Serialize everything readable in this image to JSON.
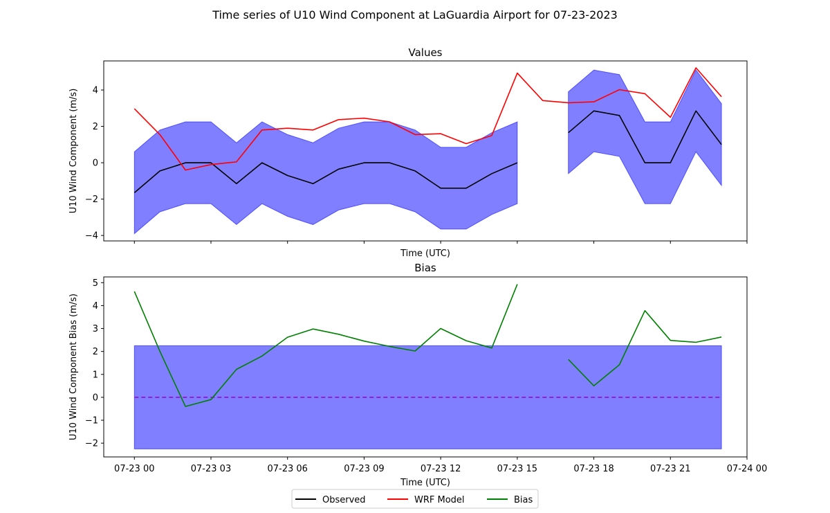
{
  "figure": {
    "title": "Time series of U10 Wind Component at LaGuardia Airport for 07-23-2023"
  },
  "legend": {
    "placement": "bottom-center",
    "entries": [
      {
        "label": "Observed",
        "color": "#000000"
      },
      {
        "label": "WRF Model",
        "color": "#ff0000"
      },
      {
        "label": "Bias",
        "color": "#008000"
      }
    ]
  },
  "colors": {
    "observed": "#000000",
    "model": "#ff0000",
    "bias": "#008000",
    "band": "#0000ff",
    "zero_line": "#9400d3"
  },
  "chart_data": [
    {
      "type": "line",
      "title": "Values",
      "xlabel": "Time (UTC)",
      "ylabel": "U10 Wind Component (m/s)",
      "x": [
        "07-23 00",
        "07-23 01",
        "07-23 02",
        "07-23 03",
        "07-23 04",
        "07-23 05",
        "07-23 06",
        "07-23 07",
        "07-23 08",
        "07-23 09",
        "07-23 10",
        "07-23 11",
        "07-23 12",
        "07-23 13",
        "07-23 14",
        "07-23 15",
        "07-23 16",
        "07-23 17",
        "07-23 18",
        "07-23 19",
        "07-23 20",
        "07-23 21",
        "07-23 22",
        "07-23 23"
      ],
      "x_hours": [
        0,
        1,
        2,
        3,
        4,
        5,
        6,
        7,
        8,
        9,
        10,
        11,
        12,
        13,
        14,
        15,
        16,
        17,
        18,
        19,
        20,
        21,
        22,
        23
      ],
      "xlim_hours": [
        -1.2,
        24.0
      ],
      "ylim": [
        -4.3,
        5.6
      ],
      "yticks": [
        -4,
        -2,
        0,
        2,
        4
      ],
      "xticks_hours": [
        0,
        3,
        6,
        9,
        12,
        15,
        18,
        21,
        24
      ],
      "xtick_labels_shown": false,
      "grid": false,
      "series": [
        {
          "name": "Observed",
          "key": "observed",
          "values": [
            -1.65,
            -0.45,
            0.0,
            0.0,
            -1.15,
            0.0,
            -0.7,
            -1.15,
            -0.35,
            0.0,
            0.0,
            -0.45,
            -1.4,
            -1.4,
            -0.6,
            0.0,
            null,
            1.65,
            2.85,
            2.6,
            0.0,
            0.0,
            2.85,
            1.0
          ]
        },
        {
          "name": "WRF Model",
          "key": "model",
          "values": [
            2.97,
            1.55,
            -0.4,
            -0.1,
            0.05,
            1.8,
            1.9,
            1.8,
            2.37,
            2.45,
            2.25,
            1.55,
            1.6,
            1.05,
            1.5,
            4.93,
            3.42,
            3.3,
            3.35,
            4.02,
            3.8,
            2.5,
            5.22,
            3.63
          ]
        }
      ],
      "band": {
        "key": "band",
        "lower": [
          -3.9,
          -2.7,
          -2.25,
          -2.25,
          -3.4,
          -2.25,
          -2.95,
          -3.4,
          -2.6,
          -2.25,
          -2.25,
          -2.7,
          -3.65,
          -3.65,
          -2.85,
          -2.25,
          null,
          -0.6,
          0.6,
          0.35,
          -2.25,
          -2.25,
          0.6,
          -1.25
        ],
        "upper": [
          0.6,
          1.8,
          2.25,
          2.25,
          1.1,
          2.25,
          1.55,
          1.1,
          1.9,
          2.25,
          2.25,
          1.8,
          0.85,
          0.85,
          1.65,
          2.25,
          null,
          3.9,
          5.1,
          4.85,
          2.25,
          2.25,
          5.1,
          3.25
        ]
      }
    },
    {
      "type": "line",
      "title": "Bias",
      "xlabel": "Time (UTC)",
      "ylabel": "U10 Wind Component Bias (m/s)",
      "x_hours": [
        0,
        1,
        2,
        3,
        4,
        5,
        6,
        7,
        8,
        9,
        10,
        11,
        12,
        13,
        14,
        15,
        16,
        17,
        18,
        19,
        20,
        21,
        22,
        23
      ],
      "xlim_hours": [
        -1.2,
        24.0
      ],
      "ylim": [
        -2.6,
        5.25
      ],
      "yticks": [
        -2,
        -1,
        0,
        1,
        2,
        3,
        4,
        5
      ],
      "xticks_hours": [
        0,
        3,
        6,
        9,
        12,
        15,
        18,
        21,
        24
      ],
      "xtick_labels": [
        "07-23 00",
        "07-23 03",
        "07-23 06",
        "07-23 09",
        "07-23 12",
        "07-23 15",
        "07-23 18",
        "07-23 21",
        "07-24 00"
      ],
      "grid": false,
      "series": [
        {
          "name": "Bias",
          "key": "bias",
          "values": [
            4.62,
            2.0,
            -0.4,
            -0.1,
            1.22,
            1.8,
            2.62,
            2.98,
            2.75,
            2.45,
            2.22,
            2.02,
            3.0,
            2.47,
            2.15,
            4.93,
            null,
            1.65,
            0.5,
            1.42,
            3.78,
            2.48,
            2.4,
            2.63
          ]
        }
      ],
      "band": {
        "key": "band",
        "lower_const": -2.25,
        "upper_const": 2.25,
        "x_from_hours": 0,
        "x_to_hours": 23
      },
      "zero_line": {
        "key": "zero_line",
        "y": 0,
        "style": "dashed"
      }
    }
  ]
}
